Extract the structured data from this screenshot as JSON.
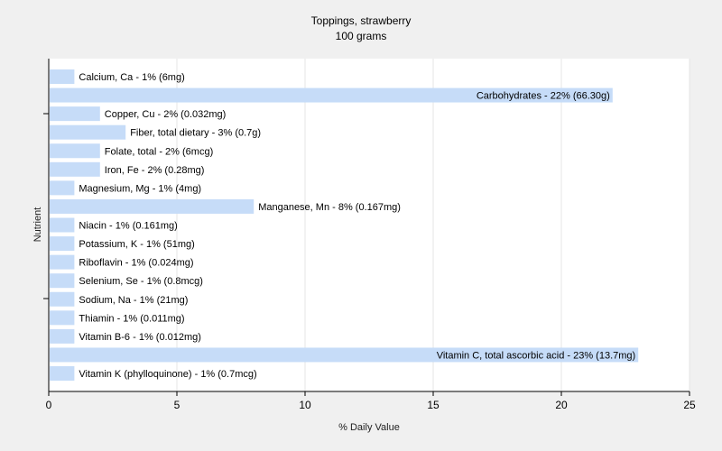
{
  "chart_data": {
    "type": "bar",
    "orientation": "horizontal",
    "title": "Toppings, strawberry",
    "subtitle": "100 grams",
    "xlabel": "% Daily Value",
    "ylabel": "Nutrient",
    "xlim": [
      0,
      25
    ],
    "xticks": [
      0,
      5,
      10,
      15,
      20,
      25
    ],
    "grid": true,
    "bar_color": "#c6dcf8",
    "bars": [
      {
        "label": "Calcium, Ca - 1% (6mg)",
        "value": 1
      },
      {
        "label": "Carbohydrates - 22% (66.30g)",
        "value": 22
      },
      {
        "label": "Copper, Cu - 2% (0.032mg)",
        "value": 2
      },
      {
        "label": "Fiber, total dietary - 3% (0.7g)",
        "value": 3
      },
      {
        "label": "Folate, total - 2% (6mcg)",
        "value": 2
      },
      {
        "label": "Iron, Fe - 2% (0.28mg)",
        "value": 2
      },
      {
        "label": "Magnesium, Mg - 1% (4mg)",
        "value": 1
      },
      {
        "label": "Manganese, Mn - 8% (0.167mg)",
        "value": 8
      },
      {
        "label": "Niacin - 1% (0.161mg)",
        "value": 1
      },
      {
        "label": "Potassium, K - 1% (51mg)",
        "value": 1
      },
      {
        "label": "Riboflavin - 1% (0.024mg)",
        "value": 1
      },
      {
        "label": "Selenium, Se - 1% (0.8mcg)",
        "value": 1
      },
      {
        "label": "Sodium, Na - 1% (21mg)",
        "value": 1
      },
      {
        "label": "Thiamin - 1% (0.011mg)",
        "value": 1
      },
      {
        "label": "Vitamin B-6 - 1% (0.012mg)",
        "value": 1
      },
      {
        "label": "Vitamin C, total ascorbic acid - 23% (13.7mg)",
        "value": 23
      },
      {
        "label": "Vitamin K (phylloquinone) - 1% (0.7mcg)",
        "value": 1
      }
    ]
  }
}
